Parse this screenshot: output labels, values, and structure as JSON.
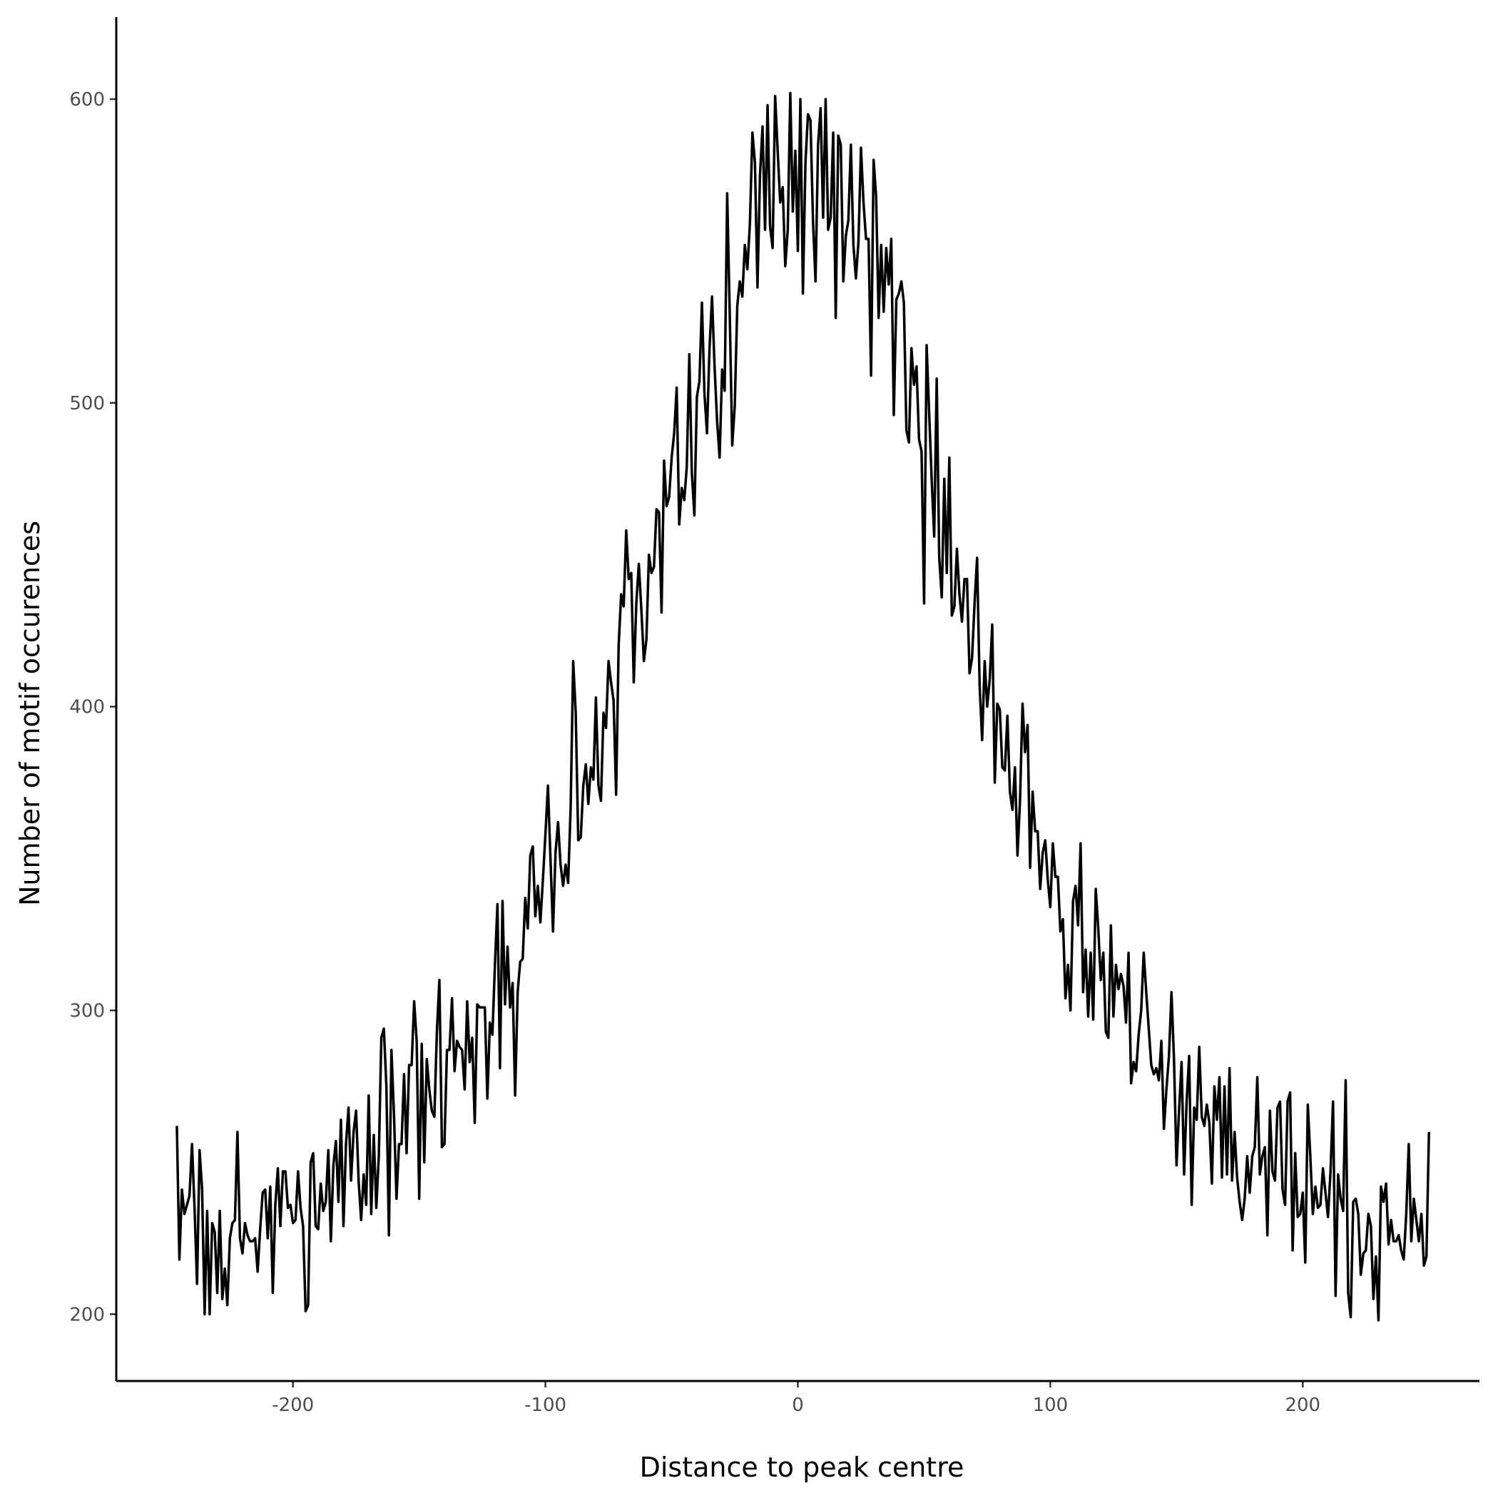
{
  "chart_data": {
    "type": "line",
    "title": "",
    "xlabel": "Distance to peak centre",
    "ylabel": "Number of motif occurences",
    "xlim": [
      -270,
      270
    ],
    "ylim": [
      178,
      627
    ],
    "x_ticks": [
      -200,
      -100,
      0,
      100,
      200
    ],
    "x_tick_labels": [
      "-200",
      "-100",
      "0",
      "100",
      "200"
    ],
    "y_ticks": [
      200,
      300,
      400,
      500,
      600
    ],
    "y_tick_labels": [
      "200",
      "300",
      "400",
      "500",
      "600"
    ],
    "grid": false,
    "legend": "none",
    "line_color": "#000000",
    "series": [
      {
        "x_start": -246,
        "x_step": 1,
        "values": [
          262,
          218,
          241,
          233,
          236,
          239,
          256,
          235,
          210,
          254,
          241,
          200,
          234,
          200,
          230,
          227,
          207,
          234,
          205,
          215,
          203,
          225,
          230,
          231,
          260,
          225,
          220,
          230,
          226,
          224,
          224,
          225,
          214,
          228,
          240,
          241,
          225,
          242,
          207,
          236,
          248,
          229,
          247,
          247,
          235,
          236,
          230,
          231,
          247,
          235,
          229,
          201,
          203,
          250,
          253,
          229,
          228,
          243,
          234,
          237,
          254,
          224,
          249,
          257,
          237,
          264,
          229,
          256,
          268,
          244,
          260,
          267,
          244,
          231,
          246,
          236,
          272,
          233,
          259,
          235,
          252,
          291,
          294,
          275,
          226,
          287,
          266,
          238,
          256,
          256,
          279,
          253,
          282,
          282,
          303,
          290,
          238,
          289,
          250,
          284,
          274,
          267,
          265,
          293,
          310,
          255,
          256,
          287,
          287,
          304,
          280,
          290,
          288,
          287,
          274,
          303,
          283,
          291,
          263,
          302,
          301,
          301,
          301,
          271,
          296,
          292,
          315,
          335,
          281,
          336,
          302,
          321,
          301,
          309,
          272,
          306,
          316,
          317,
          337,
          327,
          351,
          354,
          331,
          341,
          329,
          343,
          358,
          374,
          350,
          326,
          352,
          362,
          348,
          341,
          348,
          342,
          367,
          415,
          398,
          356,
          357,
          374,
          381,
          368,
          380,
          376,
          403,
          374,
          369,
          398,
          393,
          415,
          408,
          402,
          371,
          420,
          437,
          433,
          458,
          442,
          444,
          408,
          434,
          447,
          432,
          415,
          422,
          450,
          444,
          446,
          465,
          464,
          431,
          481,
          466,
          469,
          482,
          490,
          505,
          460,
          472,
          468,
          479,
          516,
          477,
          463,
          502,
          507,
          533,
          503,
          490,
          518,
          535,
          512,
          494,
          482,
          511,
          504,
          569,
          530,
          486,
          499,
          532,
          540,
          535,
          552,
          544,
          559,
          589,
          579,
          538,
          575,
          591,
          557,
          598,
          558,
          551,
          601,
          583,
          566,
          571,
          545,
          557,
          602,
          563,
          583,
          550,
          600,
          536,
          579,
          595,
          593,
          560,
          540,
          585,
          597,
          561,
          600,
          557,
          561,
          589,
          528,
          588,
          585,
          540,
          555,
          560,
          585,
          552,
          541,
          553,
          584,
          566,
          554,
          554,
          509,
          580,
          568,
          528,
          552,
          530,
          551,
          539,
          554,
          496,
          534,
          536,
          540,
          533,
          491,
          487,
          518,
          506,
          512,
          488,
          484,
          434,
          519,
          497,
          475,
          456,
          508,
          449,
          436,
          475,
          444,
          482,
          430,
          433,
          452,
          437,
          428,
          442,
          442,
          411,
          416,
          434,
          449,
          407,
          389,
          415,
          400,
          409,
          427,
          375,
          401,
          399,
          380,
          379,
          397,
          372,
          366,
          380,
          351,
          369,
          401,
          385,
          394,
          347,
          372,
          359,
          359,
          340,
          352,
          356,
          343,
          334,
          355,
          344,
          344,
          326,
          330,
          304,
          315,
          300,
          336,
          341,
          328,
          355,
          306,
          320,
          298,
          319,
          297,
          340,
          327,
          310,
          319,
          293,
          291,
          328,
          298,
          315,
          307,
          312,
          308,
          296,
          319,
          276,
          283,
          280,
          292,
          300,
          319,
          306,
          294,
          282,
          279,
          281,
          277,
          290,
          261,
          274,
          285,
          306,
          284,
          249,
          267,
          283,
          246,
          270,
          285,
          236,
          268,
          264,
          288,
          265,
          262,
          269,
          263,
          243,
          275,
          264,
          278,
          245,
          275,
          246,
          281,
          244,
          260,
          245,
          237,
          231,
          238,
          252,
          240,
          252,
          255,
          278,
          246,
          252,
          255,
          226,
          267,
          247,
          244,
          268,
          270,
          241,
          236,
          270,
          273,
          221,
          253,
          232,
          233,
          240,
          217,
          269,
          252,
          233,
          242,
          235,
          236,
          248,
          240,
          232,
          247,
          270,
          206,
          246,
          238,
          234,
          277,
          207,
          199,
          237,
          238,
          233,
          213,
          220,
          221,
          233,
          229,
          205,
          219,
          198,
          242,
          237,
          243,
          223,
          231,
          224,
          224,
          226,
          221,
          218,
          233,
          256,
          224,
          238,
          231,
          224,
          233,
          216,
          219,
          260
        ]
      }
    ]
  }
}
